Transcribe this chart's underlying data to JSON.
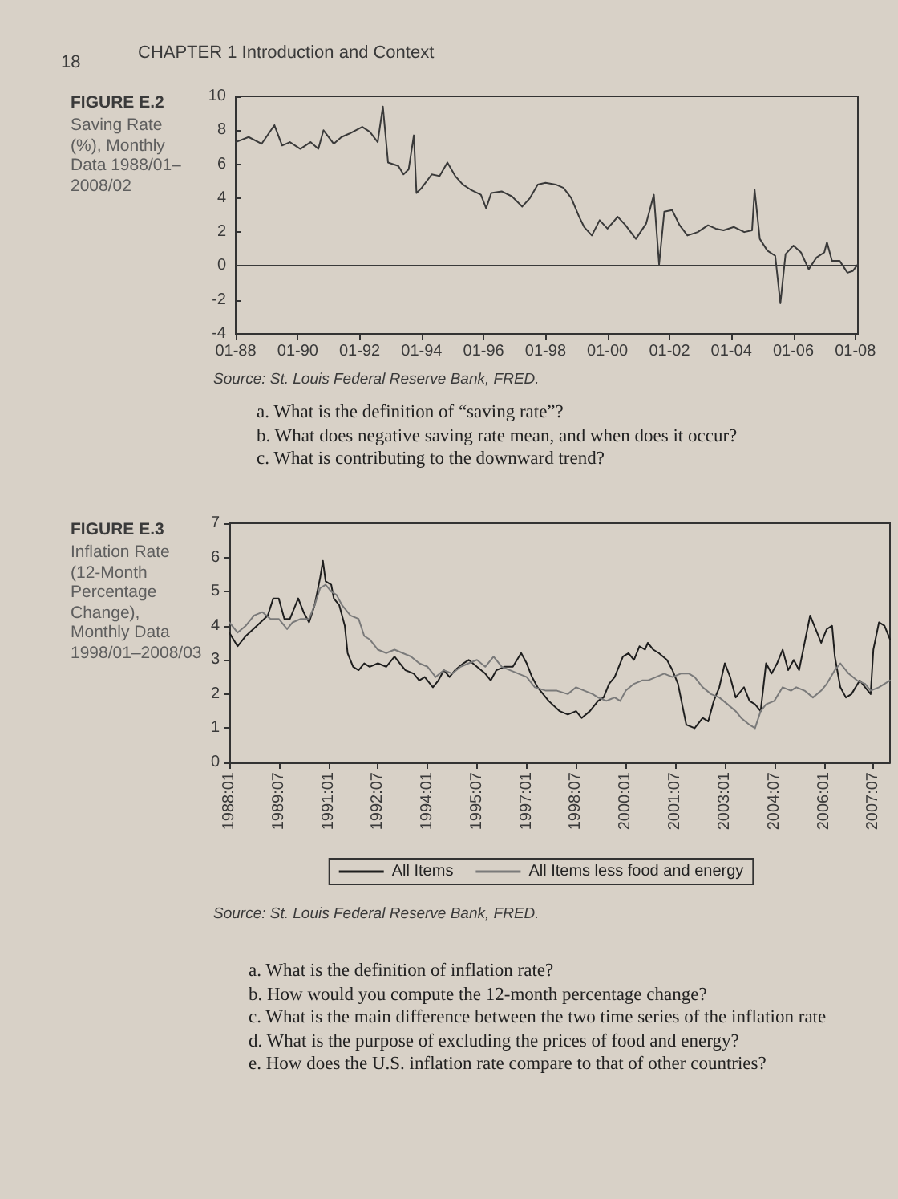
{
  "chart_data": [
    {
      "type": "line",
      "title": "FIGURE E.2",
      "subtitle": "Saving Rate (%), Monthly Data 1988/01–2008/02",
      "annotations": [
        "18",
        "CHAPTER 1 Introduction and Context",
        "Source: St. Louis Federal Reserve Bank, FRED.",
        "a. What is the definition of “saving rate”?",
        "b. What does negative saving rate mean, and when does it occur?",
        "c. What is contributing to the downward trend?"
      ],
      "x": [
        "1988-01",
        "1988-06",
        "1988-11",
        "1989-04",
        "1989-07",
        "1989-10",
        "1990-02",
        "1990-06",
        "1990-09",
        "1990-11",
        "1991-03",
        "1991-06",
        "1991-09",
        "1992-02",
        "1992-05",
        "1992-08",
        "1992-10",
        "1992-12",
        "1993-04",
        "1993-06",
        "1993-08",
        "1993-10",
        "1993-11",
        "1994-01",
        "1994-05",
        "1994-08",
        "1994-11",
        "1995-02",
        "1995-05",
        "1995-08",
        "1995-12",
        "1996-02",
        "1996-04",
        "1996-08",
        "1996-12",
        "1997-04",
        "1997-07",
        "1997-10",
        "1998-01",
        "1998-05",
        "1998-08",
        "1998-11",
        "1999-02",
        "1999-04",
        "1999-07",
        "1999-10",
        "2000-01",
        "2000-05",
        "2000-08",
        "2000-12",
        "2001-04",
        "2001-07",
        "2001-09",
        "2001-11",
        "2002-02",
        "2002-05",
        "2002-08",
        "2002-12",
        "2003-04",
        "2003-07",
        "2003-10",
        "2004-02",
        "2004-06",
        "2004-09",
        "2004-10",
        "2004-12",
        "2005-03",
        "2005-06",
        "2005-08",
        "2005-10",
        "2006-01",
        "2006-04",
        "2006-07",
        "2006-10",
        "2007-01",
        "2007-02",
        "2007-04",
        "2007-07",
        "2007-10",
        "2007-12",
        "2008-02"
      ],
      "values": [
        7.3,
        7.6,
        7.2,
        8.3,
        7.1,
        7.3,
        6.9,
        7.3,
        6.9,
        8.0,
        7.2,
        7.6,
        7.8,
        8.2,
        7.9,
        7.3,
        9.4,
        6.1,
        5.9,
        5.4,
        5.7,
        7.7,
        4.3,
        4.6,
        5.4,
        5.3,
        6.1,
        5.3,
        4.8,
        4.5,
        4.2,
        3.4,
        4.3,
        4.4,
        4.1,
        3.5,
        4.0,
        4.8,
        4.9,
        4.8,
        4.6,
        4.0,
        2.9,
        2.3,
        1.8,
        2.7,
        2.2,
        2.9,
        2.4,
        1.6,
        2.5,
        4.2,
        0.1,
        3.2,
        3.3,
        2.4,
        1.8,
        2.0,
        2.4,
        2.2,
        2.1,
        2.3,
        2.0,
        2.1,
        4.5,
        1.6,
        0.9,
        0.6,
        -2.2,
        0.7,
        1.2,
        0.8,
        -0.2,
        0.5,
        0.8,
        1.4,
        0.3,
        0.3,
        -0.4,
        -0.3,
        0.1
      ],
      "color": "#3a3a3a",
      "xlim": [
        "1988-01",
        "2008-02"
      ],
      "xticks": [
        {
          "value": "1988-01",
          "label": "01-88"
        },
        {
          "value": "1990-01",
          "label": "01-90"
        },
        {
          "value": "1992-01",
          "label": "01-92"
        },
        {
          "value": "1994-01",
          "label": "01-94"
        },
        {
          "value": "1996-01",
          "label": "01-96"
        },
        {
          "value": "1998-01",
          "label": "01-98"
        },
        {
          "value": "2000-01",
          "label": "01-00"
        },
        {
          "value": "2002-01",
          "label": "01-02"
        },
        {
          "value": "2004-01",
          "label": "01-04"
        },
        {
          "value": "2006-01",
          "label": "01-06"
        },
        {
          "value": "2008-01",
          "label": "01-08"
        }
      ],
      "ylim": [
        -4,
        10
      ],
      "yticks": [
        -4,
        -2,
        0,
        2,
        4,
        6,
        8,
        10
      ],
      "ref_lines": [
        {
          "axis": "y",
          "value": 0,
          "color": "#3a3a3a"
        }
      ],
      "grid": false,
      "marker": "none",
      "line_style": "solid"
    },
    {
      "type": "line",
      "title": "FIGURE E.3",
      "subtitle": "Inflation Rate (12-Month Percentage Change), Monthly Data 1998/01–2008/03",
      "annotations": [
        "Source: St. Louis Federal Reserve Bank, FRED.",
        "a. What is the definition of inflation rate?",
        "b. How would you compute the 12-month percentage change?",
        "c. What is the main difference between the two time series of the inflation rate",
        "d. What is the purpose of excluding the prices of food and energy?",
        "e. How does the U.S. inflation rate compare to that of other countries?"
      ],
      "series": [
        {
          "name": "All Items",
          "color": "#1e1e1e",
          "x": [
            "1988-01",
            "1988-04",
            "1988-07",
            "1988-11",
            "1989-03",
            "1989-05",
            "1989-07",
            "1989-09",
            "1989-11",
            "1990-02",
            "1990-04",
            "1990-06",
            "1990-08",
            "1990-10",
            "1990-11",
            "1990-12",
            "1991-02",
            "1991-03",
            "1991-05",
            "1991-07",
            "1991-08",
            "1991-10",
            "1991-12",
            "1992-02",
            "1992-04",
            "1992-07",
            "1992-10",
            "1993-01",
            "1993-03",
            "1993-05",
            "1993-08",
            "1993-10",
            "1993-12",
            "1994-03",
            "1994-05",
            "1994-07",
            "1994-09",
            "1994-11",
            "1995-02",
            "1995-04",
            "1995-07",
            "1995-10",
            "1995-12",
            "1996-02",
            "1996-05",
            "1996-08",
            "1996-11",
            "1997-01",
            "1997-03",
            "1997-05",
            "1997-09",
            "1998-01",
            "1998-04",
            "1998-07",
            "1998-09",
            "1998-12",
            "1999-03",
            "1999-05",
            "1999-07",
            "1999-09",
            "1999-12",
            "2000-02",
            "2000-04",
            "2000-06",
            "2000-08",
            "2000-09",
            "2000-11",
            "2001-01",
            "2001-04",
            "2001-06",
            "2001-08",
            "2001-10",
            "2001-11",
            "2002-02",
            "2002-05",
            "2002-07",
            "2002-09",
            "2002-11",
            "2003-01",
            "2003-03",
            "2003-05",
            "2003-08",
            "2003-10",
            "2003-12",
            "2004-02",
            "2004-04",
            "2004-06",
            "2004-08",
            "2004-10",
            "2004-12",
            "2005-02",
            "2005-04",
            "2005-06",
            "2005-08",
            "2005-10",
            "2005-12",
            "2006-02",
            "2006-04",
            "2006-05",
            "2006-07",
            "2006-09",
            "2006-11",
            "2007-02",
            "2007-04",
            "2007-06",
            "2007-07",
            "2007-09",
            "2007-11",
            "2008-01"
          ],
          "values": [
            3.8,
            3.4,
            3.7,
            4.0,
            4.3,
            4.8,
            4.8,
            4.2,
            4.2,
            4.8,
            4.4,
            4.1,
            4.6,
            5.4,
            5.9,
            5.3,
            5.2,
            4.8,
            4.6,
            4.0,
            3.2,
            2.8,
            2.7,
            2.9,
            2.8,
            2.9,
            2.8,
            3.1,
            2.9,
            2.7,
            2.6,
            2.4,
            2.5,
            2.2,
            2.4,
            2.7,
            2.5,
            2.7,
            2.9,
            3.0,
            2.8,
            2.6,
            2.4,
            2.7,
            2.8,
            2.8,
            3.2,
            2.9,
            2.5,
            2.2,
            1.8,
            1.5,
            1.4,
            1.5,
            1.3,
            1.5,
            1.8,
            1.9,
            2.3,
            2.5,
            3.1,
            3.2,
            3.0,
            3.4,
            3.3,
            3.5,
            3.3,
            3.2,
            3.0,
            2.7,
            2.3,
            1.5,
            1.1,
            1.0,
            1.3,
            1.2,
            1.8,
            2.2,
            2.9,
            2.5,
            1.9,
            2.2,
            1.8,
            1.7,
            1.5,
            2.9,
            2.6,
            2.9,
            3.3,
            2.7,
            3.0,
            2.7,
            3.5,
            4.3,
            3.9,
            3.5,
            3.9,
            4.0,
            3.1,
            2.2,
            1.9,
            2.0,
            2.4,
            2.2,
            2.0,
            3.3,
            4.1,
            4.0,
            3.6
          ]
        },
        {
          "name": "All Items less food and energy",
          "color": "#7a7a7a",
          "x": [
            "1988-01",
            "1988-04",
            "1988-07",
            "1988-10",
            "1989-01",
            "1989-04",
            "1989-07",
            "1989-10",
            "1989-12",
            "1990-03",
            "1990-06",
            "1990-08",
            "1990-10",
            "1990-12",
            "1991-02",
            "1991-04",
            "1991-06",
            "1991-09",
            "1991-12",
            "1992-02",
            "1992-04",
            "1992-07",
            "1992-10",
            "1993-01",
            "1993-04",
            "1993-07",
            "1993-10",
            "1994-01",
            "1994-04",
            "1994-07",
            "1994-10",
            "1995-01",
            "1995-04",
            "1995-07",
            "1995-10",
            "1996-01",
            "1996-04",
            "1996-07",
            "1996-10",
            "1997-01",
            "1997-04",
            "1997-08",
            "1997-12",
            "1998-04",
            "1998-07",
            "1998-10",
            "1999-01",
            "1999-03",
            "1999-06",
            "1999-09",
            "1999-11",
            "2000-01",
            "2000-04",
            "2000-07",
            "2000-09",
            "2000-12",
            "2001-03",
            "2001-06",
            "2001-09",
            "2001-12",
            "2002-02",
            "2002-05",
            "2002-08",
            "2002-11",
            "2003-02",
            "2003-05",
            "2003-07",
            "2003-10",
            "2003-12",
            "2004-02",
            "2004-04",
            "2004-07",
            "2004-10",
            "2005-01",
            "2005-03",
            "2005-06",
            "2005-09",
            "2005-12",
            "2006-02",
            "2006-05",
            "2006-07",
            "2006-10",
            "2007-01",
            "2007-04",
            "2007-06",
            "2007-09",
            "2007-11",
            "2008-01"
          ],
          "values": [
            4.1,
            3.8,
            4.0,
            4.3,
            4.4,
            4.2,
            4.2,
            3.9,
            4.1,
            4.2,
            4.2,
            4.6,
            5.1,
            5.2,
            5.0,
            4.9,
            4.6,
            4.3,
            4.2,
            3.7,
            3.6,
            3.3,
            3.2,
            3.3,
            3.2,
            3.1,
            2.9,
            2.8,
            2.5,
            2.7,
            2.6,
            2.8,
            2.9,
            3.0,
            2.8,
            3.1,
            2.8,
            2.7,
            2.6,
            2.5,
            2.2,
            2.1,
            2.1,
            2.0,
            2.2,
            2.1,
            2.0,
            1.9,
            1.8,
            1.9,
            1.8,
            2.1,
            2.3,
            2.4,
            2.4,
            2.5,
            2.6,
            2.5,
            2.6,
            2.6,
            2.5,
            2.2,
            2.0,
            1.9,
            1.7,
            1.5,
            1.3,
            1.1,
            1.0,
            1.5,
            1.7,
            1.8,
            2.2,
            2.1,
            2.2,
            2.1,
            1.9,
            2.1,
            2.3,
            2.7,
            2.9,
            2.6,
            2.4,
            2.3,
            2.1,
            2.2,
            2.3,
            2.4
          ]
        }
      ],
      "xlim": [
        "1988-01",
        "2008-01"
      ],
      "xticks": [
        {
          "value": "1988-01",
          "label": "1988:01"
        },
        {
          "value": "1989-07",
          "label": "1989:07"
        },
        {
          "value": "1991-01",
          "label": "1991:01"
        },
        {
          "value": "1992-07",
          "label": "1992:07"
        },
        {
          "value": "1994-01",
          "label": "1994:01"
        },
        {
          "value": "1995-07",
          "label": "1995:07"
        },
        {
          "value": "1997-01",
          "label": "1997:01"
        },
        {
          "value": "1998-07",
          "label": "1998:07"
        },
        {
          "value": "2000-01",
          "label": "2000:01"
        },
        {
          "value": "2001-07",
          "label": "2001:07"
        },
        {
          "value": "2003-01",
          "label": "2003:01"
        },
        {
          "value": "2004-07",
          "label": "2004:07"
        },
        {
          "value": "2006-01",
          "label": "2006:01"
        },
        {
          "value": "2007-07",
          "label": "2007:07"
        }
      ],
      "ylim": [
        0,
        7
      ],
      "yticks": [
        0,
        1,
        2,
        3,
        4,
        5,
        6,
        7
      ],
      "grid": false,
      "legend": "bottom",
      "marker": "none",
      "line_style": "solid"
    }
  ]
}
